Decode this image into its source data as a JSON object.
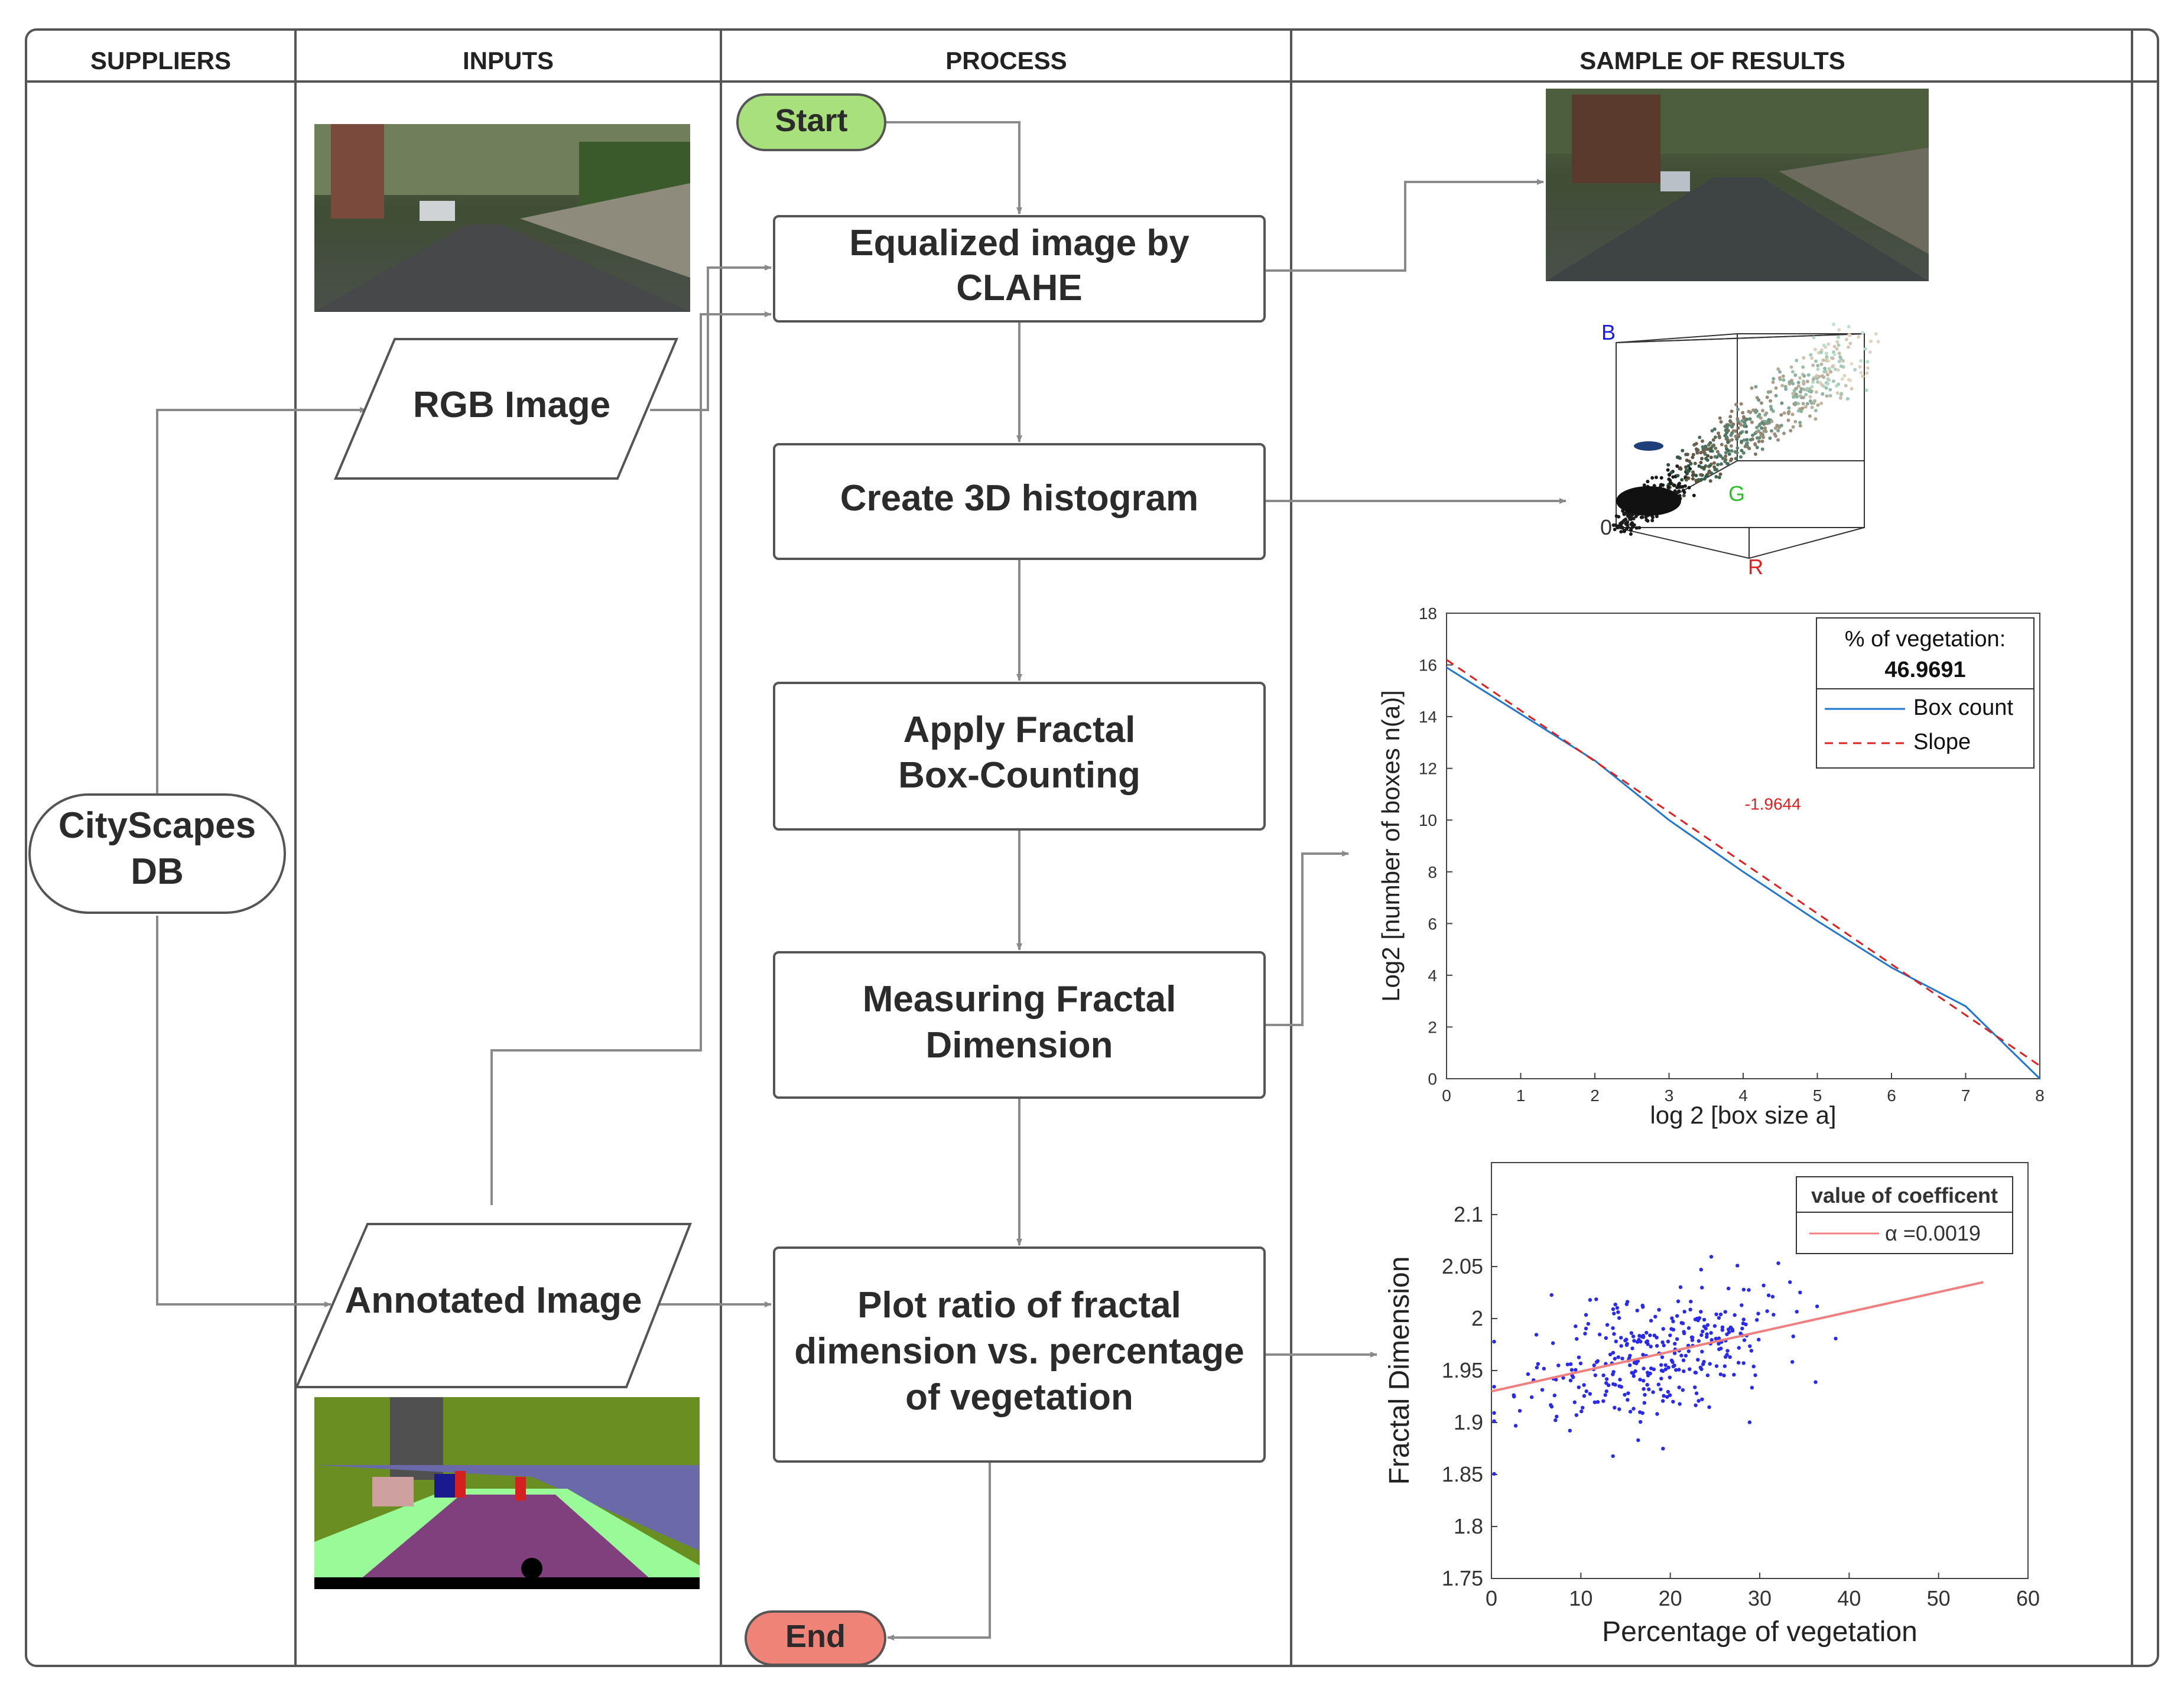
{
  "lanes": [
    {
      "title": "SUPPLIERS"
    },
    {
      "title": "INPUTS"
    },
    {
      "title": "PROCESS"
    },
    {
      "title": "SAMPLE OF RESULTS"
    }
  ],
  "supplier": {
    "line1": "CityScapes",
    "line2": "DB"
  },
  "inputs": {
    "rgb": "RGB Image",
    "annotated": "Annotated Image"
  },
  "process": {
    "start": "Start",
    "end": "End",
    "steps": [
      {
        "lines": [
          "Equalized image by",
          "CLAHE"
        ]
      },
      {
        "lines": [
          "Create 3D histogram"
        ]
      },
      {
        "lines": [
          "Apply Fractal",
          "Box-Counting"
        ]
      },
      {
        "lines": [
          "Measuring Fractal",
          "Dimension"
        ]
      },
      {
        "lines": [
          "Plot ratio of fractal",
          "dimension vs. percentage",
          "of vegetation"
        ]
      }
    ]
  },
  "histogram3d": {
    "axis_b": "B",
    "axis_g": "G",
    "axis_r": "R",
    "origin": "0"
  },
  "chart_data": [
    {
      "type": "line",
      "xlabel": "log 2 [box size a]",
      "ylabel": "Log2 [number of boxes n(a)]",
      "xlim": [
        0,
        8
      ],
      "ylim": [
        0,
        18
      ],
      "xticks": [
        "0",
        "1",
        "2",
        "3",
        "4",
        "5",
        "6",
        "7",
        "8"
      ],
      "yticks": [
        "0",
        "2",
        "4",
        "6",
        "8",
        "10",
        "12",
        "14",
        "16",
        "18"
      ],
      "legend_title": "% of vegetation:",
      "legend_value": "46.9691",
      "annotation": "-1.9644",
      "series": [
        {
          "name": "Box count",
          "color": "#1f77d0",
          "x": [
            0,
            1,
            2,
            3,
            4,
            5,
            6,
            7,
            8
          ],
          "y": [
            15.9,
            14.1,
            12.3,
            10.0,
            8.0,
            6.1,
            4.3,
            2.8,
            0.0
          ]
        },
        {
          "name": "Slope",
          "color": "#e02020",
          "x": [
            0,
            8
          ],
          "y": [
            16.2,
            0.5
          ]
        }
      ]
    },
    {
      "type": "scatter",
      "xlabel": "Percentage of vegetation",
      "ylabel": "Fractal Dimension",
      "xlim": [
        0,
        60
      ],
      "ylim": [
        1.75,
        2.15
      ],
      "xticks": [
        "0",
        "10",
        "20",
        "30",
        "40",
        "50",
        "60"
      ],
      "yticks": [
        "1.75",
        "1.8",
        "1.85",
        "1.9",
        "1.95",
        "2",
        "2.05",
        "2.1"
      ],
      "legend_title": "value of coefficent",
      "legend_entry": "α =0.0019",
      "trend": {
        "x": [
          0,
          55
        ],
        "y": [
          1.93,
          2.035
        ],
        "color": "#f08080"
      },
      "point_color": "#2a2aee"
    }
  ]
}
